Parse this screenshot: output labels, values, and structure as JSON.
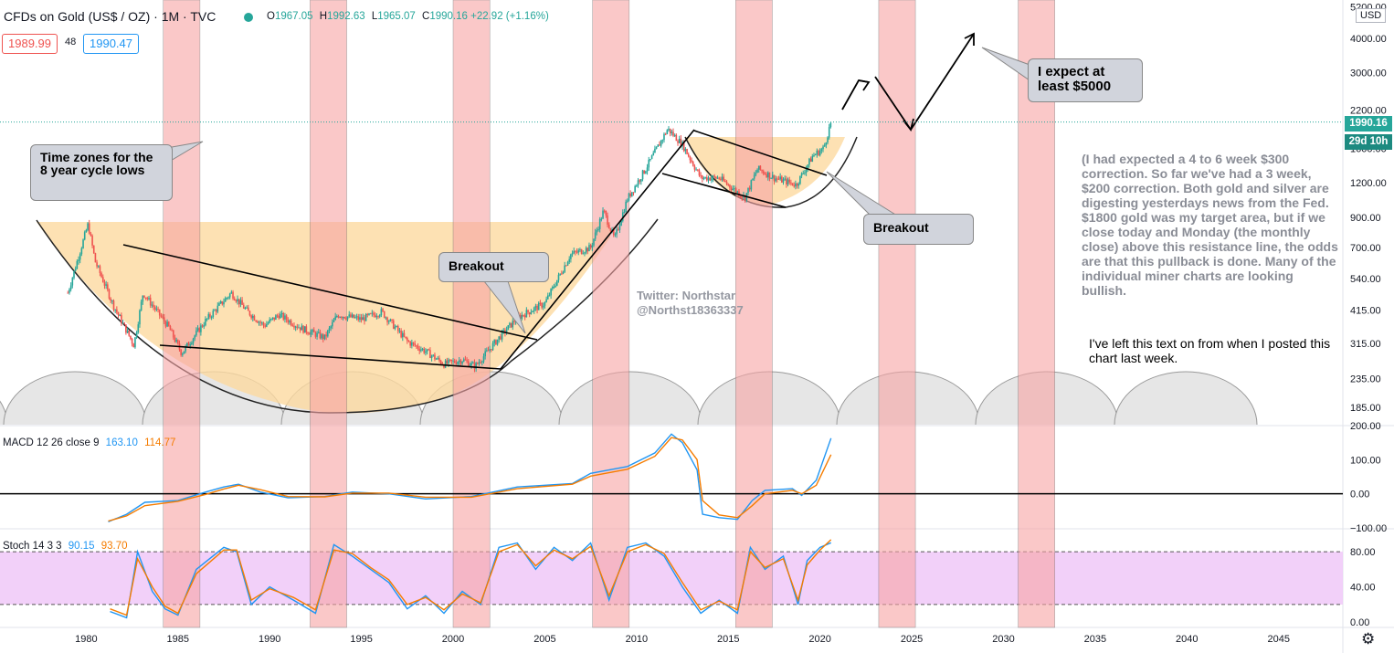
{
  "header": {
    "symbol_title": "CFDs on Gold (US$ / OZ) · 1M · TVC",
    "ohlc": [
      {
        "key": "O",
        "value": "1967.05"
      },
      {
        "key": "H",
        "value": "1992.63"
      },
      {
        "key": "L",
        "value": "1965.07"
      },
      {
        "key": "C",
        "value": "1990.16"
      }
    ],
    "change": "+22.92 (+1.16%)",
    "bid": "1989.99",
    "spread": "48",
    "ask": "1990.47",
    "live_icon": "live-dot-icon"
  },
  "price_scale": {
    "currency": "USD",
    "last_price": "1990.16",
    "countdown": "29d 10h"
  },
  "panes": {
    "macd_label": "MACD 12 26 close 9",
    "macd_value": "163.10",
    "macd_signal": "114.77",
    "stoch_label": "Stoch 14 3 3",
    "stoch_k": "90.15",
    "stoch_d": "93.70"
  },
  "annotations": {
    "time_zones": "Time zones for the 8 year cycle lows",
    "breakout_1": "Breakout",
    "breakout_2": "Breakout",
    "expect": "I expect at least $5000",
    "watermark_1": "Twitter: Northstar",
    "watermark_2": "@Northst18363337",
    "note_main": "(I had expected a 4 to 6 week $300 correction. So far we've had a 3 week, $200 correction. Both gold and silver are digesting yesterdays news from the Fed. $1800 gold was my target area, but if we close today and Monday (the monthly close) above this resistance line, the odds are that this pullback is done. Many of the individual miner charts are looking bullish.",
    "note_left_on": "I've left this text on from when I posted this chart last week."
  },
  "colors": {
    "cycle_zone": "#f8a5a5",
    "cup": "#fcd9a0",
    "up": "#26a69a",
    "down": "#ef5350",
    "macd": "#2196f3",
    "signal": "#f57c00",
    "stoch_band": "#f0c8f8"
  },
  "settings_icon": "gear-icon",
  "chart_data": [
    {
      "type": "candlestick",
      "title": "CFDs on Gold (US$ / OZ) · 1M · TVC",
      "scale": "log",
      "ylim": [
        160,
        5500
      ],
      "y_ticks": [
        "185.00",
        "235.00",
        "315.00",
        "415.00",
        "540.00",
        "700.00",
        "900.00",
        "1200.00",
        "1600.00",
        "2200.00",
        "3000.00",
        "4000.00",
        "5200.00"
      ],
      "x_ticks": [
        "1980",
        "1985",
        "1990",
        "1995",
        "2000",
        "2005",
        "2010",
        "2015",
        "2020",
        "2025",
        "2030",
        "2035",
        "2040",
        "2045"
      ],
      "xlim": [
        1975.3,
        2048.5
      ],
      "price_path": [
        [
          1979.0,
          480
        ],
        [
          1980.1,
          850
        ],
        [
          1980.5,
          620
        ],
        [
          1981.5,
          430
        ],
        [
          1982.6,
          310
        ],
        [
          1983.1,
          480
        ],
        [
          1984.5,
          360
        ],
        [
          1985.2,
          290
        ],
        [
          1986.5,
          380
        ],
        [
          1987.9,
          480
        ],
        [
          1988.8,
          410
        ],
        [
          1989.7,
          365
        ],
        [
          1990.5,
          400
        ],
        [
          1991.8,
          355
        ],
        [
          1993.0,
          330
        ],
        [
          1993.7,
          400
        ],
        [
          1995.0,
          385
        ],
        [
          1996.1,
          410
        ],
        [
          1997.5,
          320
        ],
        [
          1998.5,
          295
        ],
        [
          1999.5,
          265
        ],
        [
          2000.5,
          275
        ],
        [
          2001.2,
          260
        ],
        [
          2002.5,
          330
        ],
        [
          2003.5,
          390
        ],
        [
          2005.0,
          440
        ],
        [
          2006.4,
          660
        ],
        [
          2007.5,
          700
        ],
        [
          2008.2,
          950
        ],
        [
          2008.8,
          750
        ],
        [
          2009.5,
          1050
        ],
        [
          2010.5,
          1350
        ],
        [
          2011.7,
          1880
        ],
        [
          2012.5,
          1650
        ],
        [
          2013.5,
          1250
        ],
        [
          2014.5,
          1250
        ],
        [
          2015.9,
          1060
        ],
        [
          2016.6,
          1350
        ],
        [
          2017.5,
          1250
        ],
        [
          2018.7,
          1180
        ],
        [
          2019.6,
          1500
        ],
        [
          2020.2,
          1600
        ],
        [
          2020.6,
          1990
        ]
      ],
      "cycle_zones": [
        [
          1984.2,
          1986.2
        ],
        [
          1992.2,
          1994.2
        ],
        [
          2000.0,
          2002.0
        ],
        [
          2007.6,
          2009.6
        ],
        [
          2015.4,
          2017.4
        ],
        [
          2023.2,
          2025.2
        ],
        [
          2030.8,
          2032.8
        ]
      ],
      "last_price": 1990.16
    },
    {
      "type": "line",
      "title": "MACD 12 26 close 9",
      "ylim": [
        -100,
        200
      ],
      "y_ticks": [
        "200.00",
        "100.00",
        "0.00",
        "−100.00"
      ],
      "series": [
        {
          "name": "MACD",
          "x": [
            1981.2,
            1982.2,
            1983.2,
            1985.0,
            1986.5,
            1987.5,
            1988.3,
            1989.5,
            1991.0,
            1993.0,
            1994.5,
            1996.5,
            1998.5,
            2001.0,
            2003.5,
            2006.5,
            2007.5,
            2009.5,
            2011.0,
            2011.9,
            2012.5,
            2013.3,
            2013.6,
            2014.5,
            2015.5,
            2016.3,
            2017.0,
            2018.5,
            2019.0,
            2019.8,
            2020.6
          ],
          "values": [
            -82,
            -60,
            -25,
            -20,
            5,
            20,
            28,
            5,
            -12,
            -8,
            5,
            0,
            -15,
            -8,
            20,
            30,
            60,
            80,
            120,
            175,
            150,
            70,
            -60,
            -70,
            -75,
            -20,
            10,
            15,
            -5,
            40,
            163.1
          ]
        },
        {
          "name": "Signal",
          "x": [
            1981.2,
            1982.2,
            1983.2,
            1985.0,
            1986.5,
            1987.5,
            1988.3,
            1989.5,
            1991.0,
            1993.0,
            1994.5,
            1996.5,
            1998.5,
            2001.0,
            2003.5,
            2006.5,
            2007.5,
            2009.5,
            2011.0,
            2011.9,
            2012.5,
            2013.3,
            2013.6,
            2014.5,
            2015.5,
            2016.3,
            2017.0,
            2018.5,
            2019.0,
            2019.8,
            2020.6
          ],
          "values": [
            -80,
            -65,
            -35,
            -22,
            -2,
            14,
            25,
            12,
            -8,
            -9,
            2,
            2,
            -10,
            -10,
            15,
            28,
            52,
            72,
            110,
            165,
            158,
            100,
            -20,
            -62,
            -70,
            -35,
            0,
            10,
            0,
            25,
            114.77
          ]
        }
      ]
    },
    {
      "type": "line",
      "title": "Stoch 14 3 3",
      "ylim": [
        -5,
        105
      ],
      "y_ticks": [
        "80.00",
        "40.00",
        "0.00"
      ],
      "bands": [
        20,
        80
      ],
      "series": [
        {
          "name": "%K",
          "x": [
            1981.3,
            1982.2,
            1982.8,
            1983.6,
            1984.3,
            1985.0,
            1986.0,
            1987.5,
            1988.2,
            1989.0,
            1990.0,
            1991.3,
            1992.5,
            1993.5,
            1994.5,
            1995.5,
            1996.5,
            1997.5,
            1998.5,
            1999.5,
            2000.5,
            2001.5,
            2002.5,
            2003.5,
            2004.5,
            2005.5,
            2006.5,
            2007.5,
            2008.5,
            2009.5,
            2010.5,
            2011.5,
            2012.5,
            2013.5,
            2014.5,
            2015.5,
            2016.2,
            2017.0,
            2018.0,
            2018.8,
            2019.3,
            2020.0,
            2020.6
          ],
          "values": [
            12,
            5,
            80,
            35,
            15,
            8,
            60,
            85,
            80,
            20,
            40,
            25,
            10,
            88,
            75,
            60,
            45,
            15,
            30,
            10,
            35,
            20,
            85,
            90,
            60,
            85,
            70,
            90,
            25,
            85,
            90,
            75,
            40,
            10,
            25,
            10,
            85,
            60,
            75,
            20,
            70,
            85,
            90.15
          ]
        },
        {
          "name": "%D",
          "x": [
            1981.3,
            1982.2,
            1982.8,
            1983.6,
            1984.3,
            1985.0,
            1986.0,
            1987.5,
            1988.2,
            1989.0,
            1990.0,
            1991.3,
            1992.5,
            1993.5,
            1994.5,
            1995.5,
            1996.5,
            1997.5,
            1998.5,
            1999.5,
            2000.5,
            2001.5,
            2002.5,
            2003.5,
            2004.5,
            2005.5,
            2006.5,
            2007.5,
            2008.5,
            2009.5,
            2010.5,
            2011.5,
            2012.5,
            2013.5,
            2014.5,
            2015.5,
            2016.2,
            2017.0,
            2018.0,
            2018.8,
            2019.3,
            2020.0,
            2020.6
          ],
          "values": [
            15,
            8,
            72,
            40,
            18,
            10,
            55,
            82,
            82,
            25,
            38,
            28,
            14,
            82,
            78,
            62,
            48,
            20,
            28,
            14,
            32,
            22,
            80,
            88,
            64,
            82,
            72,
            86,
            30,
            80,
            88,
            78,
            45,
            14,
            24,
            14,
            80,
            62,
            72,
            25,
            65,
            82,
            93.7
          ]
        }
      ]
    }
  ]
}
